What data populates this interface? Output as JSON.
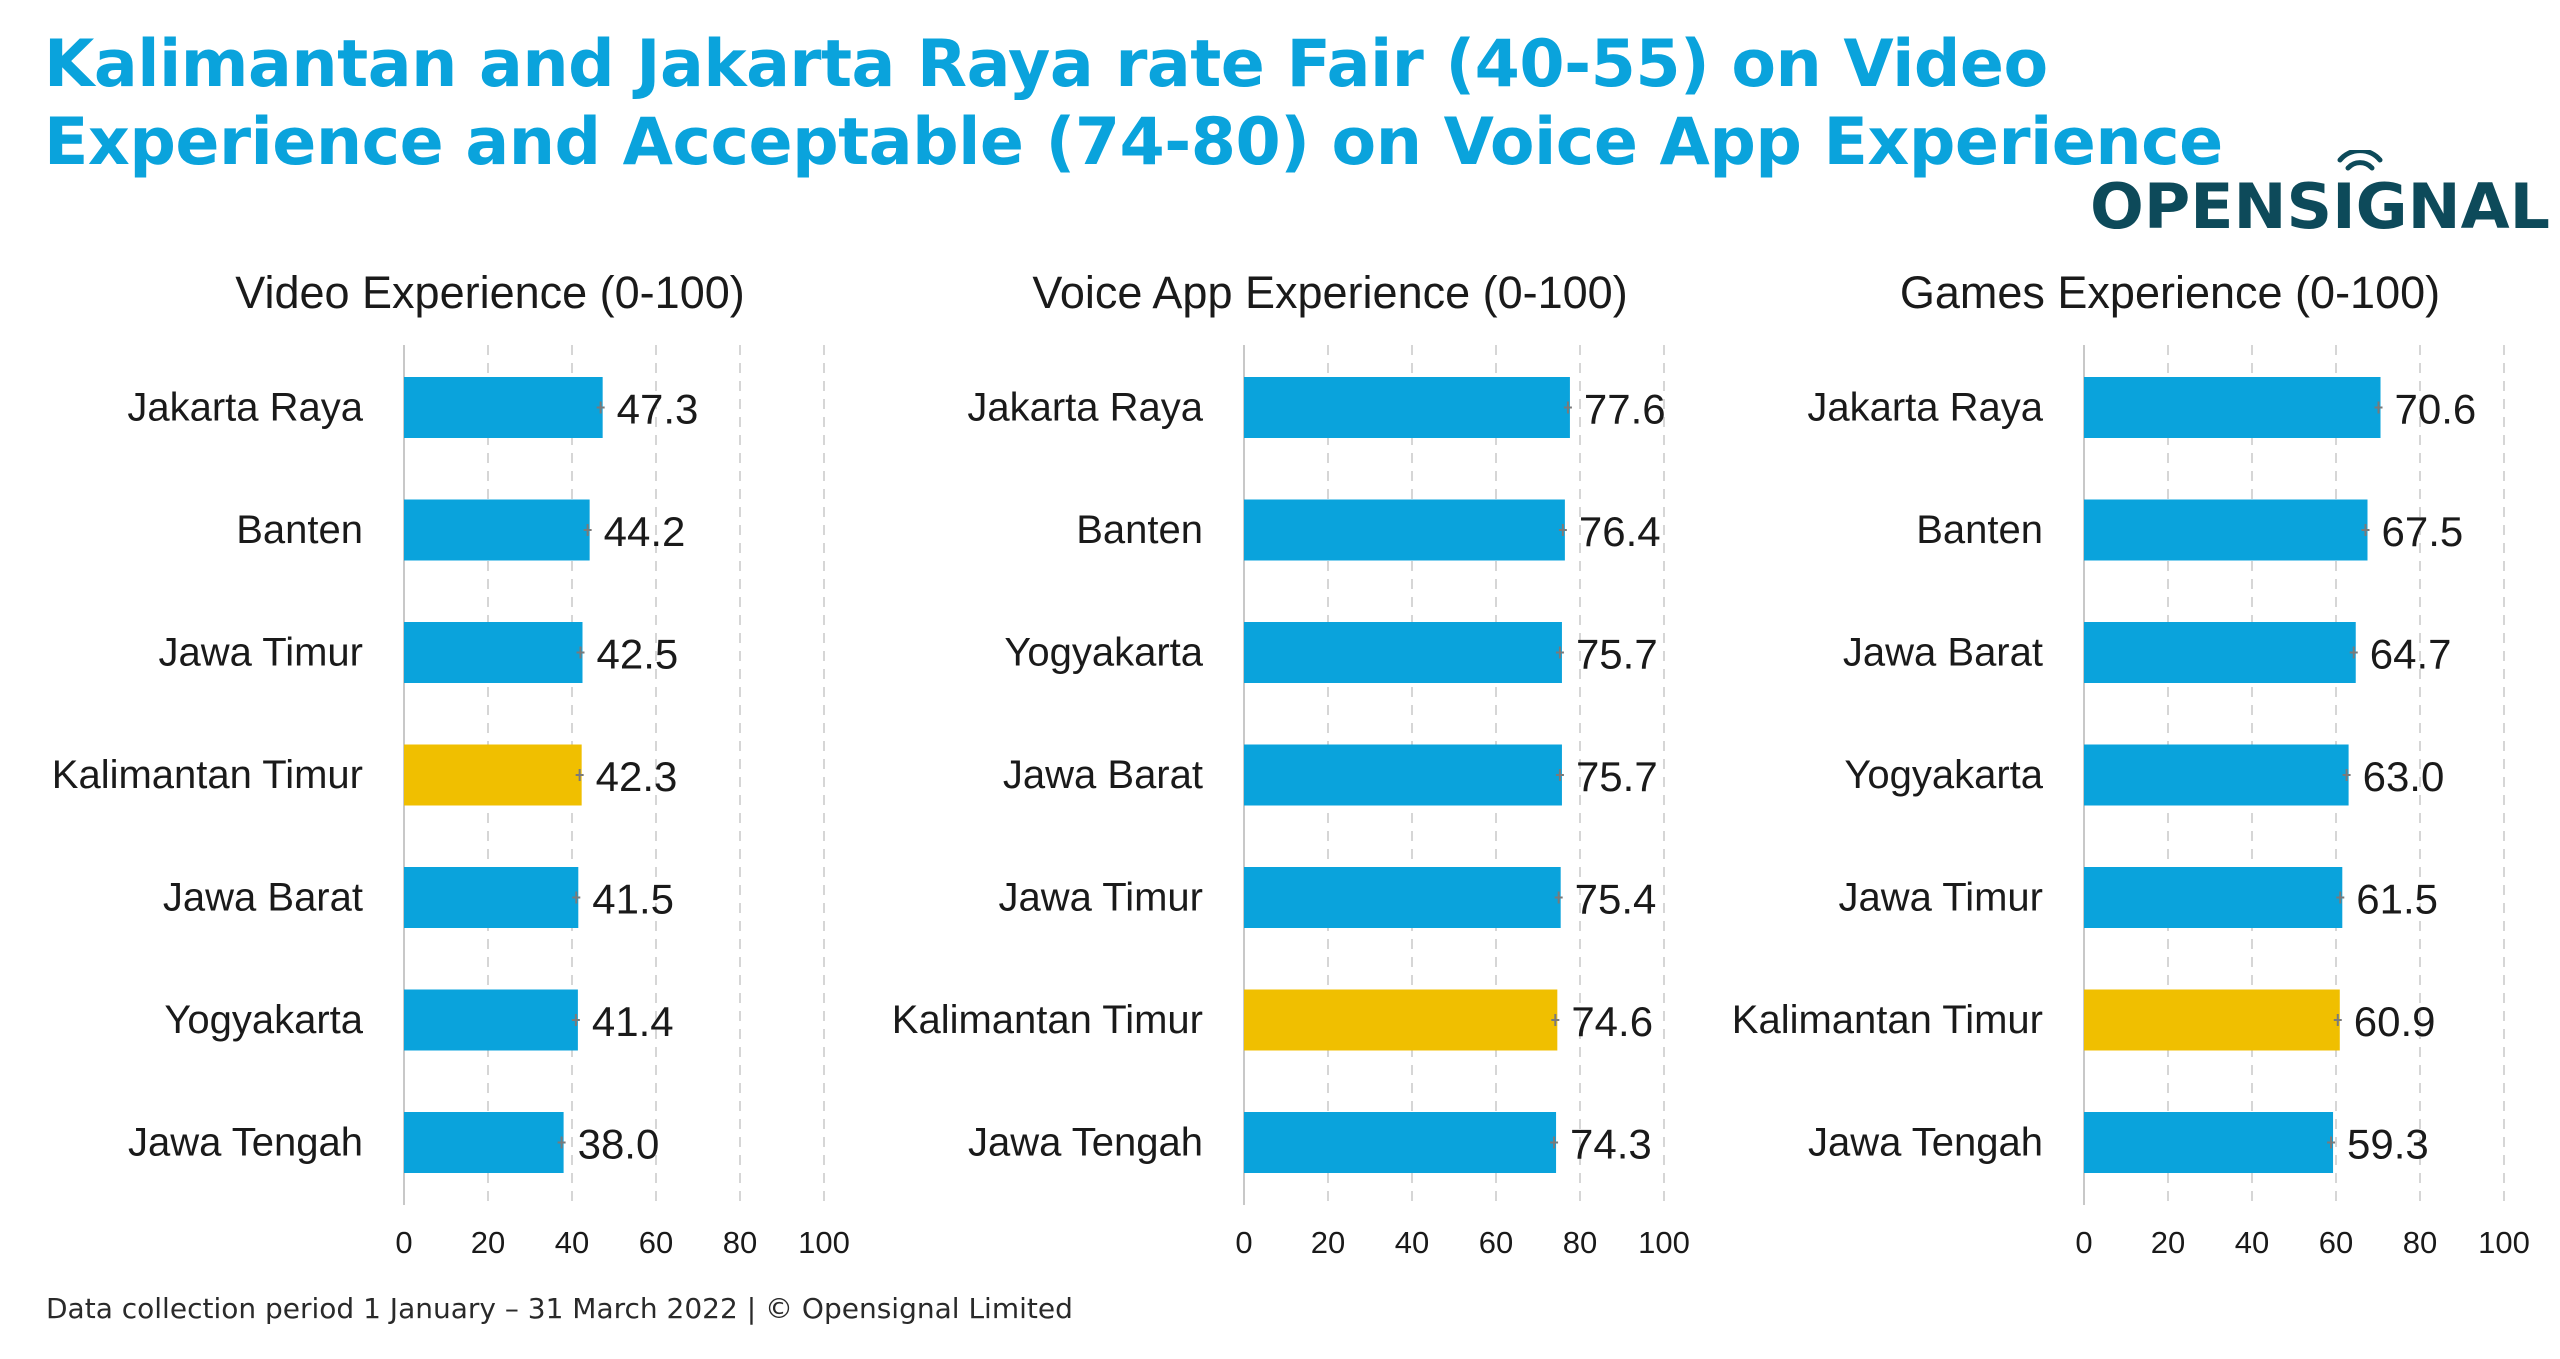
{
  "headline": "Kalimantan and Jakarta Raya rate Fair (40-55) on Video Experience and Acceptable (74-80) on Voice App Experience",
  "logo_text": "OPENSIGNAL",
  "footer": "Data collection period 1 January – 31 March 2022  |  © Opensignal Limited",
  "colors": {
    "title": "#0aa3dc",
    "bar": "#0aa3dc",
    "highlight": "#f0bf00",
    "logo": "#0d4a5a",
    "grid": "#d6d6d6"
  },
  "chart_data": [
    {
      "type": "bar",
      "orientation": "horizontal",
      "title": "Video Experience (0-100)",
      "categories": [
        "Jakarta Raya",
        "Banten",
        "Jawa Timur",
        "Kalimantan Timur",
        "Jawa Barat",
        "Yogyakarta",
        "Jawa Tengah"
      ],
      "values": [
        47.3,
        44.2,
        42.5,
        42.3,
        41.5,
        41.4,
        38.0
      ],
      "value_labels": [
        "47.3",
        "44.2",
        "42.5",
        "42.3",
        "41.5",
        "41.4",
        "38.0"
      ],
      "highlight": "Kalimantan Timur",
      "xlim": [
        0,
        100
      ],
      "xticks": [
        "0",
        "20",
        "40",
        "60",
        "80",
        "100"
      ],
      "grid": "vertical dashed"
    },
    {
      "type": "bar",
      "orientation": "horizontal",
      "title": "Voice App Experience (0-100)",
      "categories": [
        "Jakarta Raya",
        "Banten",
        "Yogyakarta",
        "Jawa Barat",
        "Jawa Timur",
        "Kalimantan Timur",
        "Jawa Tengah"
      ],
      "values": [
        77.6,
        76.4,
        75.7,
        75.7,
        75.4,
        74.6,
        74.3
      ],
      "value_labels": [
        "77.6",
        "76.4",
        "75.7",
        "75.7",
        "75.4",
        "74.6",
        "74.3"
      ],
      "highlight": "Kalimantan Timur",
      "xlim": [
        0,
        100
      ],
      "xticks": [
        "0",
        "20",
        "40",
        "60",
        "80",
        "100"
      ],
      "grid": "vertical dashed"
    },
    {
      "type": "bar",
      "orientation": "horizontal",
      "title": "Games Experience (0-100)",
      "categories": [
        "Jakarta Raya",
        "Banten",
        "Jawa Barat",
        "Yogyakarta",
        "Jawa Timur",
        "Kalimantan Timur",
        "Jawa Tengah"
      ],
      "values": [
        70.6,
        67.5,
        64.7,
        63.0,
        61.5,
        60.9,
        59.3
      ],
      "value_labels": [
        "70.6",
        "67.5",
        "64.7",
        "63.0",
        "61.5",
        "60.9",
        "59.3"
      ],
      "highlight": "Kalimantan Timur",
      "xlim": [
        0,
        100
      ],
      "xticks": [
        "0",
        "20",
        "40",
        "60",
        "80",
        "100"
      ],
      "grid": "vertical dashed"
    }
  ]
}
